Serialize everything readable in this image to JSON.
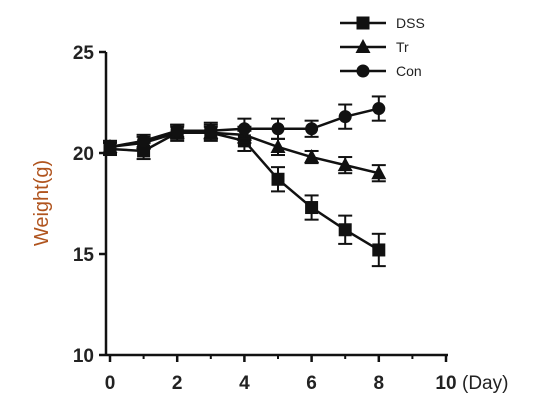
{
  "chart_data": {
    "type": "line",
    "title": "",
    "xlabel": "",
    "x_unit": "(Day)",
    "ylabel": "Weight(g)",
    "xlim": [
      0,
      10
    ],
    "ylim": [
      10,
      25
    ],
    "x_ticks": [
      "0",
      "2",
      "4",
      "6",
      "8",
      "10"
    ],
    "y_ticks": [
      "10",
      "15",
      "20",
      "25"
    ],
    "grid": false,
    "legend_position": "top-right",
    "x": [
      0,
      1,
      2,
      3,
      4,
      5,
      6,
      7,
      8
    ],
    "series": [
      {
        "name": "DSS",
        "marker": "square",
        "values": [
          20.2,
          20.1,
          21.0,
          21.0,
          20.6,
          18.7,
          17.3,
          16.2,
          15.2
        ],
        "errors": [
          0.3,
          0.4,
          0.4,
          0.4,
          0.5,
          0.6,
          0.6,
          0.7,
          0.8
        ]
      },
      {
        "name": "Tr",
        "marker": "triangle",
        "values": [
          20.3,
          20.5,
          21.0,
          21.0,
          20.9,
          20.3,
          19.8,
          19.4,
          19.0
        ],
        "errors": [
          0.3,
          0.3,
          0.3,
          0.3,
          0.4,
          0.4,
          0.3,
          0.4,
          0.4
        ]
      },
      {
        "name": "Con",
        "marker": "circle",
        "values": [
          20.3,
          20.6,
          21.1,
          21.1,
          21.2,
          21.2,
          21.2,
          21.8,
          22.2
        ],
        "errors": [
          0.3,
          0.3,
          0.3,
          0.4,
          0.5,
          0.5,
          0.4,
          0.6,
          0.6
        ]
      }
    ]
  }
}
